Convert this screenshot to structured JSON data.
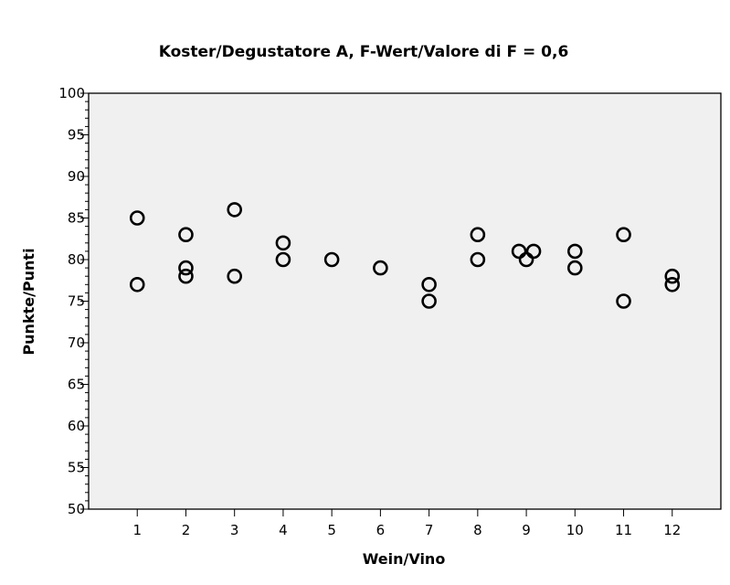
{
  "chart_data": {
    "type": "scatter",
    "title": "Koster/Degustatore A, F-Wert/Valore di F = 0,6",
    "xlabel": "Wein/Vino",
    "ylabel": "Punkte/Punti",
    "xlim": [
      0,
      13
    ],
    "ylim": [
      50,
      100
    ],
    "x_ticks": [
      1,
      2,
      3,
      4,
      5,
      6,
      7,
      8,
      9,
      10,
      11,
      12
    ],
    "y_ticks": [
      50,
      55,
      60,
      65,
      70,
      75,
      80,
      85,
      90,
      95,
      100
    ],
    "grid": false,
    "plot_background": "#f0f0f0",
    "marker_color": "#000000",
    "points": [
      {
        "x": 1,
        "y": 85
      },
      {
        "x": 1,
        "y": 77
      },
      {
        "x": 2,
        "y": 83
      },
      {
        "x": 2,
        "y": 79
      },
      {
        "x": 2,
        "y": 78
      },
      {
        "x": 3,
        "y": 86
      },
      {
        "x": 3,
        "y": 78
      },
      {
        "x": 4,
        "y": 82
      },
      {
        "x": 4,
        "y": 80
      },
      {
        "x": 5,
        "y": 80
      },
      {
        "x": 6,
        "y": 79
      },
      {
        "x": 7,
        "y": 77
      },
      {
        "x": 7,
        "y": 75
      },
      {
        "x": 8,
        "y": 83
      },
      {
        "x": 8,
        "y": 80
      },
      {
        "x": 8.85,
        "y": 81
      },
      {
        "x": 9.15,
        "y": 81
      },
      {
        "x": 9,
        "y": 80
      },
      {
        "x": 10,
        "y": 81
      },
      {
        "x": 10,
        "y": 79
      },
      {
        "x": 11,
        "y": 83
      },
      {
        "x": 11,
        "y": 75
      },
      {
        "x": 12,
        "y": 78
      },
      {
        "x": 12,
        "y": 77
      }
    ]
  }
}
